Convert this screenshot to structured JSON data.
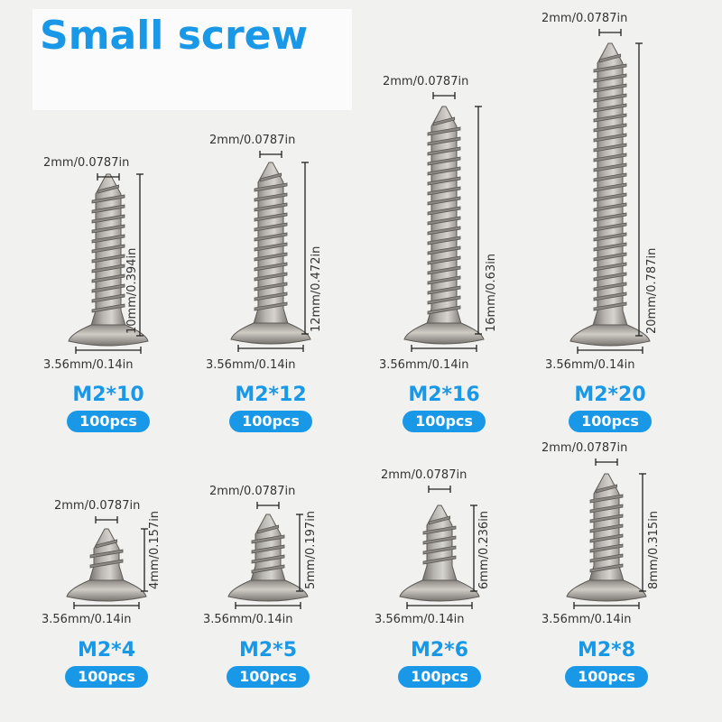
{
  "title": "Small screw",
  "accent_color": "#1a98e8",
  "screws": [
    {
      "model": "M2*10",
      "qty": "100pcs",
      "tip_dim": "2mm/0.0787in",
      "length_dim": "10mm/0.394in",
      "head_dim": "3.56mm/0.14in"
    },
    {
      "model": "M2*12",
      "qty": "100pcs",
      "tip_dim": "2mm/0.0787in",
      "length_dim": "12mm/0.472in",
      "head_dim": "3.56mm/0.14in"
    },
    {
      "model": "M2*16",
      "qty": "100pcs",
      "tip_dim": "2mm/0.0787in",
      "length_dim": "16mm/0.63in",
      "head_dim": "3.56mm/0.14in"
    },
    {
      "model": "M2*20",
      "qty": "100pcs",
      "tip_dim": "2mm/0.0787in",
      "length_dim": "20mm/0.787in",
      "head_dim": "3.56mm/0.14in"
    },
    {
      "model": "M2*4",
      "qty": "100pcs",
      "tip_dim": "2mm/0.0787in",
      "length_dim": "4mm/0.157in",
      "head_dim": "3.56mm/0.14in"
    },
    {
      "model": "M2*5",
      "qty": "100pcs",
      "tip_dim": "2mm/0.0787in",
      "length_dim": "5mm/0.197in",
      "head_dim": "3.56mm/0.14in"
    },
    {
      "model": "M2*6",
      "qty": "100pcs",
      "tip_dim": "2mm/0.0787in",
      "length_dim": "6mm/0.236in",
      "head_dim": "3.56mm/0.14in"
    },
    {
      "model": "M2*8",
      "qty": "100pcs",
      "tip_dim": "2mm/0.0787in",
      "length_dim": "8mm/0.315in",
      "head_dim": "3.56mm/0.14in"
    }
  ]
}
